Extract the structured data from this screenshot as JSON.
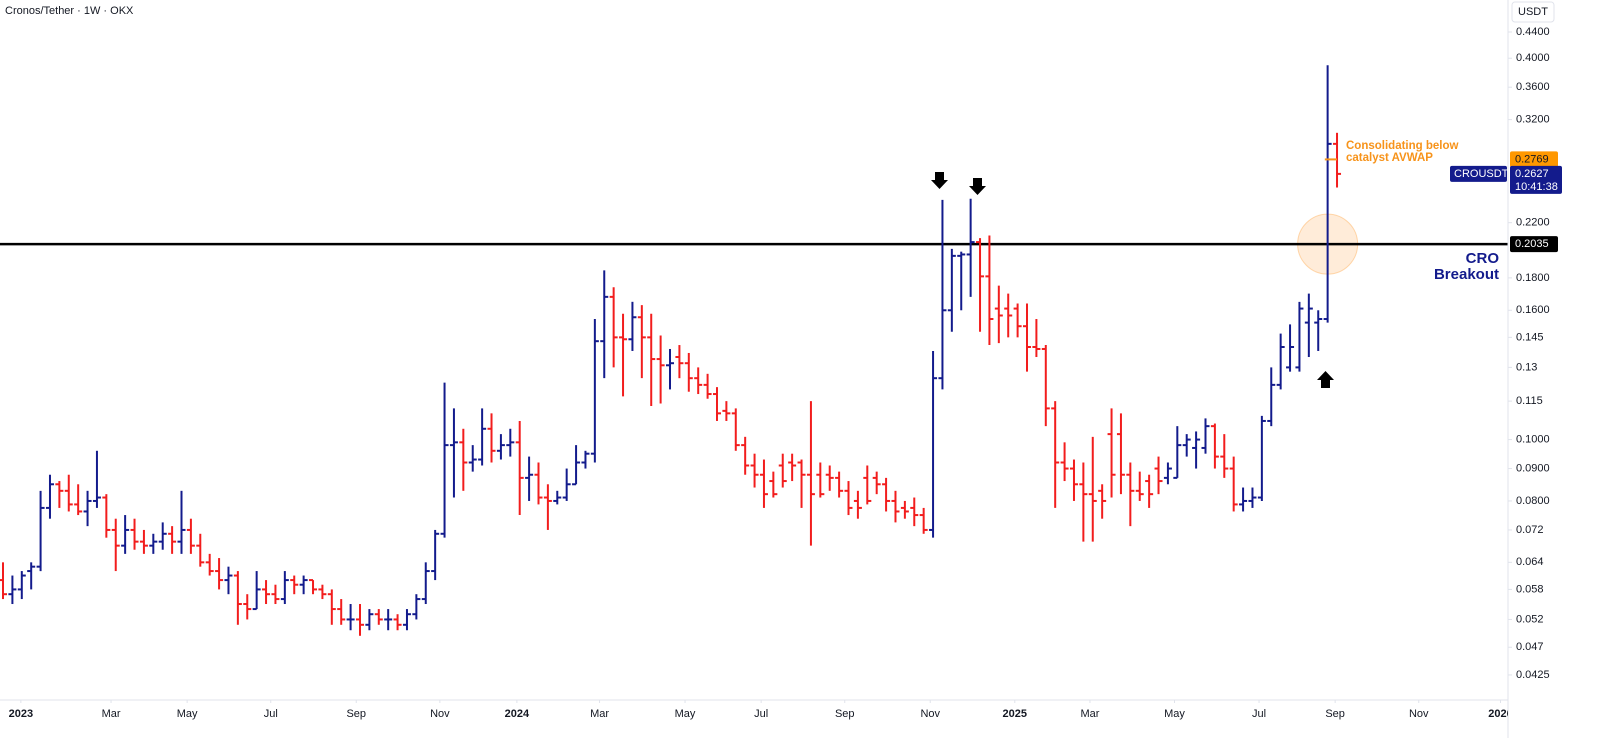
{
  "chart_data": {
    "type": "ohlc",
    "title": "Cronos/Tether · 1W · OKX",
    "y_axis_label": "USDT",
    "symbol": "CROUSDT",
    "countdown": "10:41:38",
    "log_scale": true,
    "up_color": "#131b8c",
    "down_color": "#f21d1d",
    "ylim": [
      0.0388,
      0.4943
    ],
    "yticks": [
      {
        "value": 0.44,
        "label": "0.4400"
      },
      {
        "value": 0.4,
        "label": "0.4000"
      },
      {
        "value": 0.36,
        "label": "0.3600"
      },
      {
        "value": 0.32,
        "label": "0.3200"
      },
      {
        "value": 0.22,
        "label": "0.2200"
      },
      {
        "value": 0.18,
        "label": "0.1800"
      },
      {
        "value": 0.16,
        "label": "0.1600"
      },
      0.145,
      0.13,
      0.115,
      {
        "value": 0.1,
        "label": "0.1000"
      },
      {
        "value": 0.09,
        "label": "0.0900"
      },
      {
        "value": 0.08,
        "label": "0.0800"
      },
      0.072,
      0.064,
      0.058,
      0.052,
      0.047,
      0.0425
    ],
    "xlim": [
      -0.32,
      160.2
    ],
    "xticks": [
      {
        "value": 1.9,
        "label": "2023"
      },
      {
        "value": 11.5,
        "label": "Mar"
      },
      {
        "value": 19.6,
        "label": "May"
      },
      {
        "value": 28.5,
        "label": "Jul"
      },
      {
        "value": 37.6,
        "label": "Sep"
      },
      {
        "value": 46.5,
        "label": "Nov"
      },
      {
        "value": 54.7,
        "label": "2024"
      },
      {
        "value": 63.5,
        "label": "Mar"
      },
      {
        "value": 72.6,
        "label": "May"
      },
      {
        "value": 80.7,
        "label": "Jul"
      },
      {
        "value": 89.6,
        "label": "Sep"
      },
      {
        "value": 98.7,
        "label": "Nov"
      },
      {
        "value": 107.7,
        "label": "2025"
      },
      {
        "value": 115.7,
        "label": "Mar"
      },
      {
        "value": 124.7,
        "label": "May"
      },
      {
        "value": 133.7,
        "label": "Jul"
      },
      {
        "value": 141.8,
        "label": "Sep"
      },
      {
        "value": 150.7,
        "label": "Nov"
      },
      {
        "value": 159.4,
        "label": "2026"
      }
    ],
    "level": {
      "value": 0.2035,
      "label_lines": [
        "CRO",
        "Breakout"
      ],
      "color": "#000000"
    },
    "avwap": {
      "value": 0.2769,
      "label_lines": [
        "Consolidating below",
        "catalyst AVWAP"
      ],
      "color": "#f7931a"
    },
    "ohlc": [
      [
        0.06,
        0.064,
        0.056,
        0.057
      ],
      [
        0.057,
        0.061,
        0.055,
        0.058
      ],
      [
        0.058,
        0.062,
        0.056,
        0.061
      ],
      [
        0.062,
        0.064,
        0.058,
        0.063
      ],
      [
        0.063,
        0.083,
        0.062,
        0.078
      ],
      [
        0.078,
        0.088,
        0.075,
        0.085
      ],
      [
        0.085,
        0.086,
        0.078,
        0.083
      ],
      [
        0.083,
        0.088,
        0.077,
        0.079
      ],
      [
        0.079,
        0.085,
        0.076,
        0.077
      ],
      [
        0.077,
        0.083,
        0.073,
        0.08
      ],
      [
        0.08,
        0.096,
        0.078,
        0.081
      ],
      [
        0.081,
        0.082,
        0.07,
        0.072
      ],
      [
        0.072,
        0.075,
        0.062,
        0.068
      ],
      [
        0.068,
        0.076,
        0.066,
        0.072
      ],
      [
        0.072,
        0.075,
        0.067,
        0.069
      ],
      [
        0.069,
        0.072,
        0.066,
        0.068
      ],
      [
        0.068,
        0.071,
        0.066,
        0.069
      ],
      [
        0.069,
        0.074,
        0.067,
        0.071
      ],
      [
        0.071,
        0.073,
        0.066,
        0.069
      ],
      [
        0.069,
        0.083,
        0.066,
        0.072
      ],
      [
        0.072,
        0.075,
        0.066,
        0.068
      ],
      [
        0.068,
        0.071,
        0.063,
        0.064
      ],
      [
        0.064,
        0.066,
        0.061,
        0.062
      ],
      [
        0.062,
        0.065,
        0.058,
        0.06
      ],
      [
        0.06,
        0.063,
        0.057,
        0.061
      ],
      [
        0.061,
        0.062,
        0.051,
        0.055
      ],
      [
        0.055,
        0.057,
        0.052,
        0.054
      ],
      [
        0.054,
        0.062,
        0.054,
        0.058
      ],
      [
        0.058,
        0.06,
        0.055,
        0.057
      ],
      [
        0.057,
        0.059,
        0.055,
        0.056
      ],
      [
        0.056,
        0.062,
        0.055,
        0.06
      ],
      [
        0.06,
        0.061,
        0.057,
        0.059
      ],
      [
        0.059,
        0.061,
        0.057,
        0.06
      ],
      [
        0.06,
        0.06,
        0.057,
        0.058
      ],
      [
        0.058,
        0.059,
        0.056,
        0.057
      ],
      [
        0.057,
        0.058,
        0.051,
        0.054
      ],
      [
        0.054,
        0.056,
        0.051,
        0.052
      ],
      [
        0.052,
        0.055,
        0.05,
        0.052
      ],
      [
        0.052,
        0.055,
        0.049,
        0.051
      ],
      [
        0.051,
        0.054,
        0.05,
        0.053
      ],
      [
        0.053,
        0.054,
        0.051,
        0.052
      ],
      [
        0.052,
        0.054,
        0.05,
        0.052
      ],
      [
        0.052,
        0.053,
        0.05,
        0.051
      ],
      [
        0.051,
        0.054,
        0.05,
        0.053
      ],
      [
        0.053,
        0.057,
        0.052,
        0.056
      ],
      [
        0.056,
        0.064,
        0.055,
        0.062
      ],
      [
        0.062,
        0.072,
        0.06,
        0.071
      ],
      [
        0.071,
        0.123,
        0.07,
        0.098
      ],
      [
        0.098,
        0.112,
        0.081,
        0.099
      ],
      [
        0.099,
        0.104,
        0.083,
        0.092
      ],
      [
        0.092,
        0.098,
        0.089,
        0.093
      ],
      [
        0.093,
        0.112,
        0.091,
        0.104
      ],
      [
        0.104,
        0.11,
        0.092,
        0.096
      ],
      [
        0.096,
        0.102,
        0.093,
        0.098
      ],
      [
        0.098,
        0.104,
        0.094,
        0.099
      ],
      [
        0.099,
        0.107,
        0.076,
        0.087
      ],
      [
        0.087,
        0.094,
        0.08,
        0.088
      ],
      [
        0.088,
        0.092,
        0.079,
        0.081
      ],
      [
        0.081,
        0.085,
        0.072,
        0.08
      ],
      [
        0.08,
        0.083,
        0.079,
        0.081
      ],
      [
        0.081,
        0.09,
        0.08,
        0.085
      ],
      [
        0.085,
        0.098,
        0.085,
        0.092
      ],
      [
        0.092,
        0.096,
        0.09,
        0.095
      ],
      [
        0.095,
        0.155,
        0.092,
        0.143
      ],
      [
        0.143,
        0.185,
        0.125,
        0.168
      ],
      [
        0.168,
        0.174,
        0.13,
        0.145
      ],
      [
        0.145,
        0.158,
        0.117,
        0.144
      ],
      [
        0.144,
        0.165,
        0.138,
        0.156
      ],
      [
        0.156,
        0.163,
        0.125,
        0.145
      ],
      [
        0.145,
        0.158,
        0.113,
        0.134
      ],
      [
        0.134,
        0.146,
        0.114,
        0.131
      ],
      [
        0.131,
        0.139,
        0.12,
        0.132
      ],
      [
        0.135,
        0.141,
        0.125,
        0.132
      ],
      [
        0.132,
        0.137,
        0.119,
        0.125
      ],
      [
        0.125,
        0.13,
        0.118,
        0.122
      ],
      [
        0.122,
        0.127,
        0.116,
        0.118
      ],
      [
        0.118,
        0.121,
        0.107,
        0.11
      ],
      [
        0.111,
        0.115,
        0.107,
        0.11
      ],
      [
        0.11,
        0.112,
        0.096,
        0.098
      ],
      [
        0.098,
        0.101,
        0.088,
        0.091
      ],
      [
        0.091,
        0.095,
        0.084,
        0.088
      ],
      [
        0.088,
        0.093,
        0.078,
        0.082
      ],
      [
        0.086,
        0.089,
        0.081,
        0.082
      ],
      [
        0.091,
        0.095,
        0.084,
        0.086
      ],
      [
        0.092,
        0.095,
        0.086,
        0.091
      ],
      [
        0.092,
        0.093,
        0.078,
        0.088
      ],
      [
        0.088,
        0.115,
        0.068,
        0.082
      ],
      [
        0.088,
        0.092,
        0.081,
        0.082
      ],
      [
        0.088,
        0.091,
        0.083,
        0.087
      ],
      [
        0.087,
        0.089,
        0.081,
        0.083
      ],
      [
        0.083,
        0.086,
        0.076,
        0.078
      ],
      [
        0.08,
        0.083,
        0.075,
        0.078
      ],
      [
        0.087,
        0.091,
        0.079,
        0.08
      ],
      [
        0.087,
        0.089,
        0.082,
        0.085
      ],
      [
        0.085,
        0.087,
        0.077,
        0.08
      ],
      [
        0.08,
        0.083,
        0.074,
        0.077
      ],
      [
        0.078,
        0.08,
        0.075,
        0.077
      ],
      [
        0.078,
        0.081,
        0.073,
        0.076
      ],
      [
        0.076,
        0.078,
        0.071,
        0.072
      ],
      [
        0.072,
        0.138,
        0.07,
        0.125
      ],
      [
        0.125,
        0.239,
        0.12,
        0.16
      ],
      [
        0.16,
        0.2,
        0.148,
        0.195
      ],
      [
        0.195,
        0.198,
        0.16,
        0.196
      ],
      [
        0.196,
        0.24,
        0.168,
        0.205
      ],
      [
        0.205,
        0.208,
        0.148,
        0.181
      ],
      [
        0.181,
        0.21,
        0.141,
        0.155
      ],
      [
        0.161,
        0.175,
        0.142,
        0.157
      ],
      [
        0.161,
        0.17,
        0.145,
        0.157
      ],
      [
        0.161,
        0.164,
        0.145,
        0.151
      ],
      [
        0.151,
        0.164,
        0.128,
        0.14
      ],
      [
        0.14,
        0.155,
        0.135,
        0.139
      ],
      [
        0.139,
        0.141,
        0.105,
        0.112
      ],
      [
        0.112,
        0.115,
        0.078,
        0.092
      ],
      [
        0.092,
        0.099,
        0.086,
        0.09
      ],
      [
        0.09,
        0.093,
        0.08,
        0.085
      ],
      [
        0.085,
        0.092,
        0.069,
        0.082
      ],
      [
        0.082,
        0.101,
        0.069,
        0.08
      ],
      [
        0.083,
        0.085,
        0.075,
        0.08
      ],
      [
        0.102,
        0.112,
        0.081,
        0.088
      ],
      [
        0.102,
        0.11,
        0.082,
        0.088
      ],
      [
        0.088,
        0.092,
        0.073,
        0.083
      ],
      [
        0.083,
        0.089,
        0.08,
        0.082
      ],
      [
        0.086,
        0.088,
        0.078,
        0.082
      ],
      [
        0.09,
        0.094,
        0.082,
        0.086
      ],
      [
        0.087,
        0.092,
        0.085,
        0.09
      ],
      [
        0.087,
        0.105,
        0.087,
        0.098
      ],
      [
        0.098,
        0.102,
        0.094,
        0.1
      ],
      [
        0.097,
        0.103,
        0.09,
        0.1
      ],
      [
        0.097,
        0.108,
        0.095,
        0.105
      ],
      [
        0.105,
        0.106,
        0.09,
        0.094
      ],
      [
        0.094,
        0.102,
        0.087,
        0.09
      ],
      [
        0.09,
        0.094,
        0.077,
        0.079
      ],
      [
        0.079,
        0.084,
        0.077,
        0.08
      ],
      [
        0.08,
        0.084,
        0.078,
        0.081
      ],
      [
        0.081,
        0.109,
        0.08,
        0.107
      ],
      [
        0.107,
        0.13,
        0.105,
        0.122
      ],
      [
        0.122,
        0.147,
        0.12,
        0.14
      ],
      [
        0.13,
        0.152,
        0.128,
        0.14
      ],
      [
        0.13,
        0.165,
        0.128,
        0.161
      ],
      [
        0.153,
        0.17,
        0.135,
        0.161
      ],
      [
        0.153,
        0.16,
        0.138,
        0.155
      ],
      [
        0.155,
        0.39,
        0.153,
        0.293
      ],
      [
        0.293,
        0.305,
        0.25,
        0.2627
      ]
    ]
  }
}
